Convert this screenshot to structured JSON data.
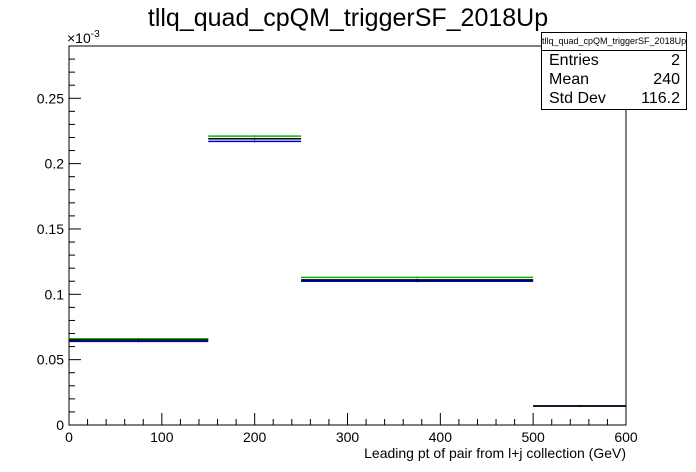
{
  "title": "tllq_quad_cpQM_triggerSF_2018Up",
  "stats": {
    "title": "tllq_quad_cpQM_triggerSF_2018Up",
    "rows": [
      {
        "label": "Entries",
        "value": "2"
      },
      {
        "label": "Mean",
        "value": "240"
      },
      {
        "label": "Std Dev",
        "value": "116.2"
      }
    ]
  },
  "chart_data": {
    "type": "histogram",
    "title": "tllq_quad_cpQM_triggerSF_2018Up",
    "xlabel": "Leading pt of pair from l+j collection (GeV)",
    "ylabel": "",
    "y_exponent_label": "×10",
    "y_exponent": "-3",
    "xlim": [
      0,
      600
    ],
    "ylim": [
      0,
      0.29
    ],
    "x_ticks": [
      0,
      100,
      200,
      300,
      400,
      500,
      600
    ],
    "x_tick_labels": [
      "0",
      "100",
      "200",
      "300",
      "400",
      "500",
      "600"
    ],
    "y_ticks": [
      0,
      0.05,
      0.1,
      0.15,
      0.2,
      0.25
    ],
    "y_tick_labels": [
      "0",
      "0.05",
      "0.1",
      "0.15",
      "0.2",
      "0.25"
    ],
    "bin_edges": [
      0,
      150,
      250,
      500,
      600
    ],
    "series": [
      {
        "color": "#000000",
        "values": [
          0.065,
          0.219,
          0.111,
          0.0145
        ]
      },
      {
        "color": "#00bb00",
        "values": [
          0.066,
          0.221,
          0.113,
          0.0145
        ]
      },
      {
        "color": "#0000cc",
        "values": [
          0.064,
          0.217,
          0.11,
          0.0145
        ]
      }
    ]
  }
}
